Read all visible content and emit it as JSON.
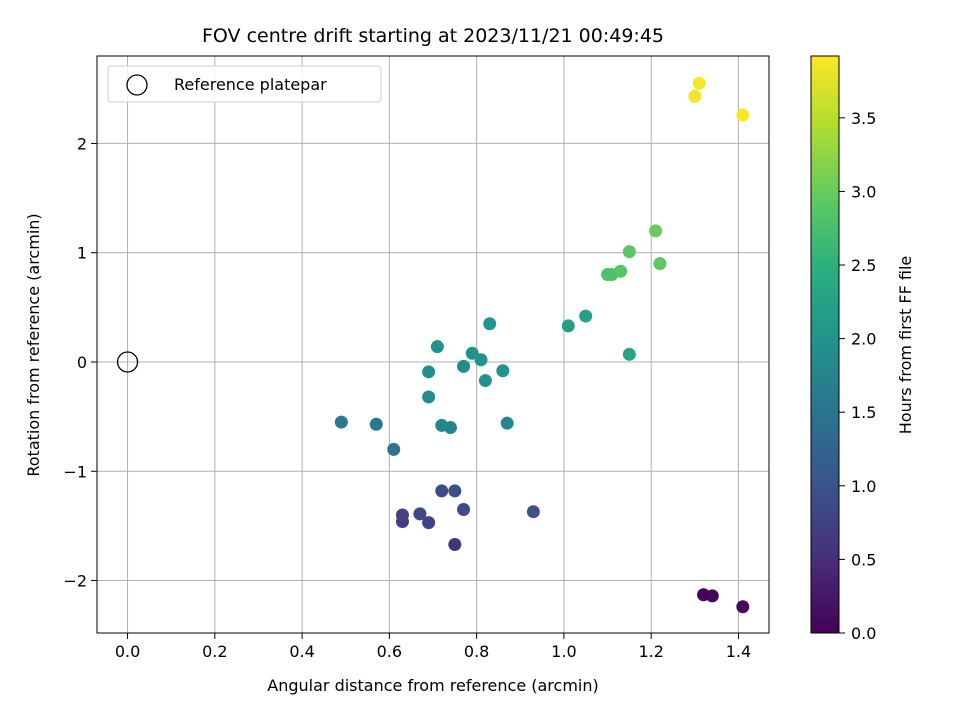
{
  "chart_data": {
    "type": "scatter",
    "title": "FOV centre drift starting at 2023/11/21 00:49:45",
    "xlabel": "Angular distance from reference (arcmin)",
    "ylabel": "Rotation from reference (arcmin)",
    "xlim": [
      -0.07,
      1.47
    ],
    "ylim": [
      -2.48,
      2.8
    ],
    "xticks": [
      0.0,
      0.2,
      0.4,
      0.6,
      0.8,
      1.0,
      1.2,
      1.4
    ],
    "xtick_labels": [
      "0.0",
      "0.2",
      "0.4",
      "0.6",
      "0.8",
      "1.0",
      "1.2",
      "1.4"
    ],
    "yticks": [
      -2,
      -1,
      0,
      1,
      2
    ],
    "ytick_labels": [
      "−2",
      "−1",
      "0",
      "1",
      "2"
    ],
    "grid": true,
    "legend": {
      "placement": "top-left",
      "entries": [
        {
          "label": "Reference platepar",
          "marker": "open-circle",
          "x": 0,
          "y": 0
        }
      ]
    },
    "colorbar": {
      "label": "Hours from first FF file",
      "colormap": "viridis",
      "range": [
        0,
        3.92
      ],
      "ticks": [
        0.0,
        0.5,
        1.0,
        1.5,
        2.0,
        2.5,
        3.0,
        3.5
      ],
      "tick_labels": [
        "0.0",
        "0.5",
        "1.0",
        "1.5",
        "2.0",
        "2.5",
        "3.0",
        "3.5"
      ]
    },
    "points": [
      {
        "x": 1.32,
        "y": -2.13,
        "c": 0.05
      },
      {
        "x": 1.34,
        "y": -2.14,
        "c": 0.08
      },
      {
        "x": 1.41,
        "y": -2.24,
        "c": 0.1
      },
      {
        "x": 0.75,
        "y": -1.67,
        "c": 0.6
      },
      {
        "x": 0.63,
        "y": -1.46,
        "c": 0.7
      },
      {
        "x": 0.63,
        "y": -1.4,
        "c": 0.75
      },
      {
        "x": 0.69,
        "y": -1.47,
        "c": 0.8
      },
      {
        "x": 0.67,
        "y": -1.39,
        "c": 0.85
      },
      {
        "x": 0.72,
        "y": -1.18,
        "c": 0.9
      },
      {
        "x": 0.75,
        "y": -1.18,
        "c": 0.95
      },
      {
        "x": 0.77,
        "y": -1.35,
        "c": 0.9
      },
      {
        "x": 0.93,
        "y": -1.37,
        "c": 0.95
      },
      {
        "x": 0.61,
        "y": -0.8,
        "c": 1.45
      },
      {
        "x": 0.57,
        "y": -0.57,
        "c": 1.55
      },
      {
        "x": 0.49,
        "y": -0.55,
        "c": 1.6
      },
      {
        "x": 0.74,
        "y": -0.6,
        "c": 1.75
      },
      {
        "x": 0.72,
        "y": -0.58,
        "c": 1.8
      },
      {
        "x": 0.87,
        "y": -0.56,
        "c": 1.8
      },
      {
        "x": 0.69,
        "y": -0.32,
        "c": 1.9
      },
      {
        "x": 0.69,
        "y": -0.09,
        "c": 1.95
      },
      {
        "x": 0.71,
        "y": 0.14,
        "c": 2.0
      },
      {
        "x": 0.77,
        "y": -0.04,
        "c": 1.9
      },
      {
        "x": 0.79,
        "y": 0.08,
        "c": 2.0
      },
      {
        "x": 0.81,
        "y": 0.02,
        "c": 2.0
      },
      {
        "x": 0.82,
        "y": -0.17,
        "c": 2.0
      },
      {
        "x": 0.86,
        "y": -0.08,
        "c": 2.0
      },
      {
        "x": 0.83,
        "y": 0.35,
        "c": 2.05
      },
      {
        "x": 1.01,
        "y": 0.33,
        "c": 2.2
      },
      {
        "x": 1.05,
        "y": 0.42,
        "c": 2.25
      },
      {
        "x": 1.15,
        "y": 0.07,
        "c": 2.3
      },
      {
        "x": 1.1,
        "y": 0.8,
        "c": 2.8
      },
      {
        "x": 1.11,
        "y": 0.8,
        "c": 2.8
      },
      {
        "x": 1.13,
        "y": 0.83,
        "c": 2.85
      },
      {
        "x": 1.15,
        "y": 1.01,
        "c": 2.9
      },
      {
        "x": 1.22,
        "y": 0.9,
        "c": 2.95
      },
      {
        "x": 1.21,
        "y": 1.2,
        "c": 3.0
      },
      {
        "x": 1.3,
        "y": 2.43,
        "c": 3.85
      },
      {
        "x": 1.31,
        "y": 2.55,
        "c": 3.88
      },
      {
        "x": 1.41,
        "y": 2.26,
        "c": 3.92
      }
    ]
  }
}
